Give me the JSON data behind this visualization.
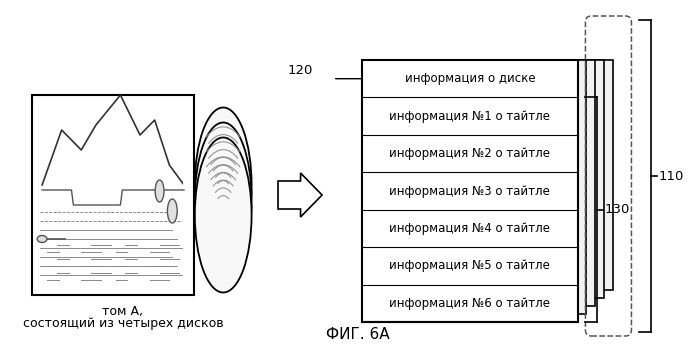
{
  "title": "ФИГ. 6А",
  "left_label_line1": "том А,",
  "left_label_line2": "состоящий из четырех дисков",
  "rows": [
    "информация о диске",
    "информация №1 о тайтле",
    "информация №2 о тайтле",
    "информация №3 о тайтле",
    "информация №4 о тайтле",
    "информация №5 о тайтле",
    "информация №6 о тайтле"
  ],
  "label_120": "120",
  "label_130": "130",
  "label_110": "110",
  "bg_color": "#ffffff",
  "line_color": "#000000",
  "text_color": "#000000",
  "font_size": 8.5,
  "title_font_size": 11
}
